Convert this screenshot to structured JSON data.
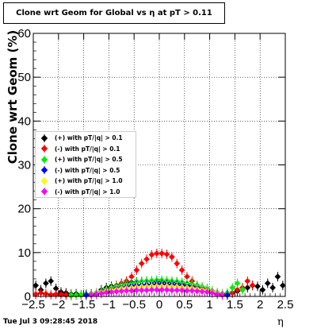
{
  "title": "Clone wrt Geom for Global vs   η at pT > 0.11",
  "datestamp": "Tue Jul  3 09:28:45 2018",
  "chart_data": {
    "type": "scatter",
    "xlabel": "η",
    "ylabel": "Clone wrt Geom (%)",
    "xlim": [
      -2.5,
      2.5
    ],
    "ylim": [
      0,
      60
    ],
    "xticks": [
      "−2.5",
      "−2",
      "−1.5",
      "−1",
      "−0.5",
      "0",
      "0.5",
      "1",
      "1.5",
      "2",
      "2.5"
    ],
    "yticks": [
      "0",
      "10",
      "20",
      "30",
      "40",
      "50",
      "60"
    ],
    "grid": true,
    "legend_position": "middle-left",
    "series": [
      {
        "name": "(+) with pT/|q| > 0.1",
        "color": "#000000",
        "x": [
          -2.45,
          -2.35,
          -2.25,
          -2.15,
          -2.05,
          -1.95,
          -1.85,
          -1.75,
          -1.65,
          -1.55,
          -1.45,
          -1.35,
          -1.25,
          -1.15,
          -1.05,
          -0.95,
          -0.85,
          -0.75,
          -0.65,
          -0.55,
          -0.45,
          -0.35,
          -0.25,
          -0.15,
          -0.05,
          0.05,
          0.15,
          0.25,
          0.35,
          0.45,
          0.55,
          0.65,
          0.75,
          0.85,
          0.95,
          1.05,
          1.15,
          1.25,
          1.35,
          1.45,
          1.55,
          1.65,
          1.75,
          1.85,
          1.95,
          2.05,
          2.15,
          2.25,
          2.35,
          2.45
        ],
        "y": [
          2.5,
          1.5,
          3.0,
          3.5,
          1.8,
          1.0,
          0.8,
          0.5,
          0.6,
          0.4,
          0.5,
          0.6,
          0.8,
          1.5,
          2.0,
          2.3,
          2.5,
          2.8,
          3.0,
          3.2,
          3.3,
          3.4,
          3.5,
          3.4,
          3.4,
          3.4,
          3.3,
          3.3,
          3.2,
          3.0,
          2.8,
          2.5,
          2.3,
          2.0,
          1.5,
          1.0,
          0.7,
          0.6,
          0.5,
          0.8,
          1.2,
          1.5,
          2.0,
          2.5,
          2.3,
          1.5,
          3.0,
          2.0,
          4.5,
          2.5
        ]
      },
      {
        "name": "(-) with pT/|q| > 0.1",
        "color": "#ff0000",
        "x": [
          -2.45,
          -2.35,
          -2.25,
          -2.15,
          -2.05,
          -1.95,
          -1.85,
          -1.75,
          -1.65,
          -1.55,
          -1.45,
          -1.35,
          -1.25,
          -1.15,
          -1.05,
          -0.95,
          -0.85,
          -0.75,
          -0.65,
          -0.55,
          -0.45,
          -0.35,
          -0.25,
          -0.15,
          -0.05,
          0.05,
          0.15,
          0.25,
          0.35,
          0.45,
          0.55,
          0.65,
          0.75,
          0.85,
          0.95,
          1.05,
          1.15,
          1.25,
          1.35,
          1.45,
          1.55,
          1.65,
          1.75,
          1.85
        ],
        "y": [
          0.5,
          0.8,
          0.6,
          0.4,
          0.5,
          0.4,
          0.3,
          0.2,
          0.3,
          0.3,
          0.4,
          0.5,
          0.8,
          1.0,
          1.5,
          2.0,
          2.5,
          3.0,
          3.5,
          4.5,
          6.0,
          7.5,
          8.5,
          9.5,
          9.8,
          9.8,
          9.6,
          9.0,
          7.5,
          6.0,
          4.5,
          3.5,
          2.5,
          2.0,
          1.5,
          1.0,
          0.7,
          0.5,
          0.4,
          0.8,
          1.5,
          2.0,
          3.5,
          2.5
        ]
      },
      {
        "name": "(+) with pT/|q| > 0.5",
        "color": "#00ee00",
        "x": [
          -1.75,
          -1.65,
          -1.55,
          -1.45,
          -1.35,
          -1.25,
          -1.15,
          -1.05,
          -0.95,
          -0.85,
          -0.75,
          -0.65,
          -0.55,
          -0.45,
          -0.35,
          -0.25,
          -0.15,
          -0.05,
          0.05,
          0.15,
          0.25,
          0.35,
          0.45,
          0.55,
          0.65,
          0.75,
          0.85,
          0.95,
          1.05,
          1.15,
          1.25,
          1.35,
          1.45,
          1.55,
          1.65
        ],
        "y": [
          0.3,
          0.3,
          0.4,
          0.5,
          0.6,
          0.8,
          1.2,
          1.6,
          2.0,
          2.3,
          2.6,
          2.8,
          3.0,
          3.2,
          3.4,
          3.5,
          3.6,
          3.7,
          3.7,
          3.6,
          3.5,
          3.4,
          3.2,
          3.0,
          2.8,
          2.5,
          2.2,
          1.8,
          1.3,
          0.9,
          0.6,
          0.8,
          2.0,
          3.0,
          1.5
        ]
      },
      {
        "name": "(-) with pT/|q| > 0.5",
        "color": "#0000ff",
        "x": [
          -1.45,
          -1.35,
          -1.25,
          -1.15,
          -1.05,
          -0.95,
          -0.85,
          -0.75,
          -0.65,
          -0.55,
          -0.45,
          -0.35,
          -0.25,
          -0.15,
          -0.05,
          0.05,
          0.15,
          0.25,
          0.35,
          0.45,
          0.55,
          0.65,
          0.75,
          0.85,
          0.95,
          1.05,
          1.15,
          1.25,
          1.35
        ],
        "y": [
          0.3,
          0.4,
          0.5,
          0.8,
          1.2,
          1.5,
          1.8,
          2.0,
          2.2,
          2.4,
          2.5,
          2.6,
          2.7,
          2.7,
          2.8,
          2.8,
          2.7,
          2.7,
          2.6,
          2.5,
          2.3,
          2.1,
          1.9,
          1.6,
          1.3,
          0.9,
          0.6,
          0.4,
          0.3
        ]
      },
      {
        "name": "(+) with pT/|q| > 1.0",
        "color": "#ffff00",
        "x": [
          -1.35,
          -1.25,
          -1.15,
          -1.05,
          -0.95,
          -0.85,
          -0.75,
          -0.65,
          -0.55,
          -0.45,
          -0.35,
          -0.25,
          -0.15,
          -0.05,
          0.05,
          0.15,
          0.25,
          0.35,
          0.45,
          0.55,
          0.65,
          0.75,
          0.85,
          0.95,
          1.05,
          1.15,
          1.25
        ],
        "y": [
          0.4,
          0.6,
          0.9,
          1.2,
          1.4,
          1.6,
          1.8,
          1.9,
          2.0,
          2.1,
          2.2,
          2.2,
          2.3,
          2.3,
          2.3,
          2.3,
          2.2,
          2.2,
          2.1,
          2.0,
          1.9,
          1.7,
          1.5,
          1.3,
          1.0,
          0.7,
          0.4
        ]
      },
      {
        "name": "(-) with pT/|q| > 1.0",
        "color": "#ff00ff",
        "x": [
          -1.35,
          -1.25,
          -1.15,
          -1.05,
          -0.95,
          -0.85,
          -0.75,
          -0.65,
          -0.55,
          -0.45,
          -0.35,
          -0.25,
          -0.15,
          -0.05,
          0.05,
          0.15,
          0.25,
          0.35,
          0.45,
          0.55,
          0.65,
          0.75,
          0.85,
          0.95,
          1.05,
          1.15,
          1.25
        ],
        "y": [
          0.3,
          0.5,
          0.7,
          0.9,
          1.0,
          1.1,
          1.2,
          1.3,
          1.3,
          1.4,
          1.4,
          1.4,
          1.5,
          1.5,
          1.5,
          1.5,
          1.4,
          1.4,
          1.4,
          1.3,
          1.3,
          1.2,
          1.1,
          1.0,
          0.8,
          0.5,
          0.3
        ]
      }
    ]
  }
}
